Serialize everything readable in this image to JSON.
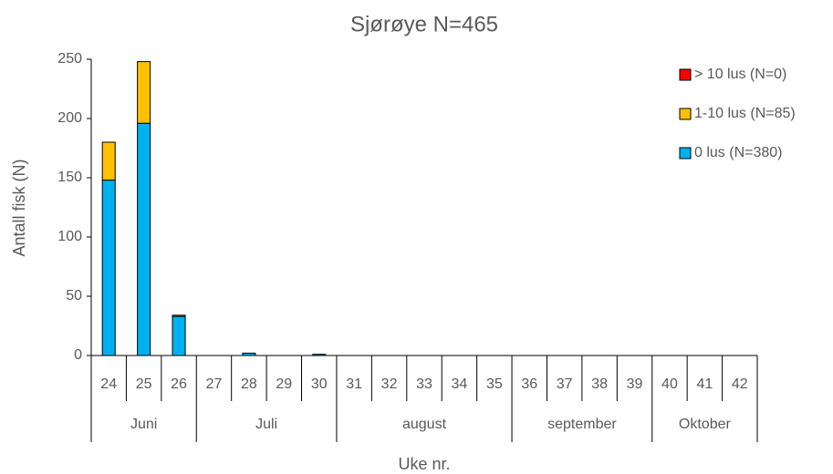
{
  "chart_data": {
    "type": "stacked_bar",
    "title": "Sjørøye N=465",
    "x_label": "Uke nr.",
    "y_label": "Antall fisk (N)",
    "categories": [
      "24",
      "25",
      "26",
      "27",
      "28",
      "29",
      "30",
      "31",
      "32",
      "33",
      "34",
      "35",
      "36",
      "37",
      "38",
      "39",
      "40",
      "41",
      "42"
    ],
    "groups": [
      {
        "label": "Juni",
        "span": 3
      },
      {
        "label": "Juli",
        "span": 4
      },
      {
        "label": "august",
        "span": 5
      },
      {
        "label": "september",
        "span": 4
      },
      {
        "label": "Oktober",
        "span": 3
      }
    ],
    "series": [
      {
        "name": "0 lus (N=380)",
        "color": "#00b0f0",
        "values": [
          148,
          196,
          33,
          0,
          2,
          0,
          1,
          0,
          0,
          0,
          0,
          0,
          0,
          0,
          0,
          0,
          0,
          0,
          0
        ]
      },
      {
        "name": "1-10 lus (N=85)",
        "color": "#ffc000",
        "values": [
          32,
          52,
          1,
          0,
          0,
          0,
          0,
          0,
          0,
          0,
          0,
          0,
          0,
          0,
          0,
          0,
          0,
          0,
          0
        ]
      },
      {
        "name": "> 10 lus (N=0)",
        "color": "#ff0000",
        "values": [
          0,
          0,
          0,
          0,
          0,
          0,
          0,
          0,
          0,
          0,
          0,
          0,
          0,
          0,
          0,
          0,
          0,
          0,
          0
        ]
      }
    ],
    "ylim": [
      0,
      250
    ],
    "yticks": [
      0,
      50,
      100,
      150,
      200,
      250
    ],
    "legend": "right"
  }
}
